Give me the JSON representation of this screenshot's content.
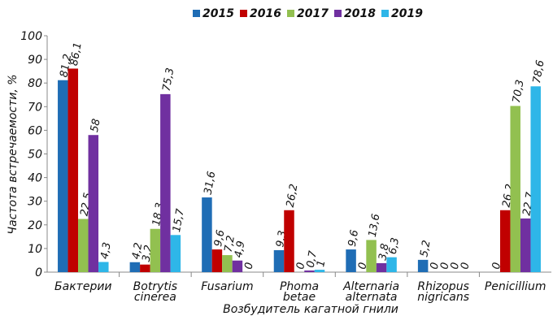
{
  "chart_data": {
    "type": "bar",
    "x_label": "Возбудитель кагатной гнили",
    "y_label": "Частота встречаемости, %",
    "categories": [
      "Бактерии",
      "Botrytis cinerea",
      "Fusarium",
      "Phoma betae",
      "Alternaria alternata",
      "Rhizopus nigricans",
      "Penicillium"
    ],
    "series": [
      {
        "name": "2015",
        "color": "#1f6db5",
        "values": [
          81.2,
          4.2,
          31.6,
          9.3,
          9.6,
          5.2,
          0
        ],
        "value_labels": [
          "81,2",
          "4,2",
          "31,6",
          "9,3",
          "9,6",
          "5,2",
          "0"
        ]
      },
      {
        "name": "2016",
        "color": "#c00000",
        "values": [
          86.1,
          3.2,
          9.6,
          26.2,
          0,
          0,
          26.2
        ],
        "value_labels": [
          "86,1",
          "3,2",
          "9,6",
          "26,2",
          "0",
          "0",
          "26,2"
        ]
      },
      {
        "name": "2017",
        "color": "#92c050",
        "values": [
          22.5,
          18.3,
          7.2,
          0,
          13.6,
          0,
          70.3
        ],
        "value_labels": [
          "22,5",
          "18,3",
          "7,2",
          "0",
          "13,6",
          "0",
          "70,3"
        ]
      },
      {
        "name": "2018",
        "color": "#7030a0",
        "values": [
          58,
          75.3,
          4.9,
          0.7,
          3.8,
          0,
          22.7
        ],
        "value_labels": [
          "58",
          "75,3",
          "4,9",
          "0,7",
          "3,8",
          "0",
          "22,7"
        ]
      },
      {
        "name": "2019",
        "color": "#2eb6e8",
        "values": [
          4.3,
          15.7,
          0,
          1,
          6.3,
          0,
          78.6
        ],
        "value_labels": [
          "4,3",
          "15,7",
          "0",
          "1",
          "6,3",
          "0",
          "78,6"
        ]
      }
    ],
    "ylim": [
      0,
      100
    ],
    "yticks": [
      0,
      10,
      20,
      30,
      40,
      50,
      60,
      70,
      80,
      90,
      100
    ],
    "legend": "top"
  }
}
